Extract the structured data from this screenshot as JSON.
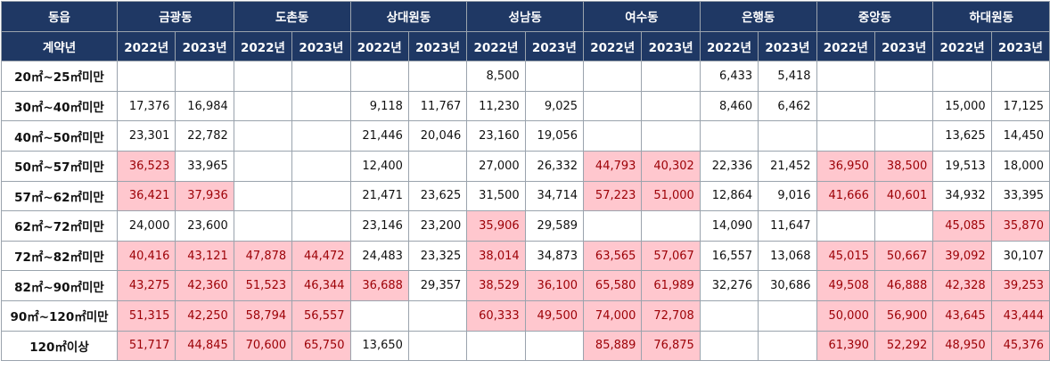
{
  "header": {
    "corner_label": "동읍",
    "districts": [
      "금광동",
      "도촌동",
      "상대원동",
      "성남동",
      "여수동",
      "은행동",
      "중앙동",
      "하대원동"
    ],
    "sub_corner_label": "계약년",
    "years": [
      "2022년",
      "2023년"
    ]
  },
  "highlight_color": "#ffc7ce",
  "highlight_text_color": "#9c0006",
  "header_color": "#1f3864",
  "rows": [
    {
      "label": "20㎡~25㎡미만",
      "cells": [
        {
          "v": "",
          "hl": false
        },
        {
          "v": "",
          "hl": false
        },
        {
          "v": "",
          "hl": false
        },
        {
          "v": "",
          "hl": false
        },
        {
          "v": "",
          "hl": false
        },
        {
          "v": "",
          "hl": false
        },
        {
          "v": "8,500",
          "hl": false
        },
        {
          "v": "",
          "hl": false
        },
        {
          "v": "",
          "hl": false
        },
        {
          "v": "",
          "hl": false
        },
        {
          "v": "6,433",
          "hl": false
        },
        {
          "v": "5,418",
          "hl": false
        },
        {
          "v": "",
          "hl": false
        },
        {
          "v": "",
          "hl": false
        },
        {
          "v": "",
          "hl": false
        },
        {
          "v": "",
          "hl": false
        }
      ]
    },
    {
      "label": "30㎡~40㎡미만",
      "cells": [
        {
          "v": "17,376",
          "hl": false
        },
        {
          "v": "16,984",
          "hl": false
        },
        {
          "v": "",
          "hl": false
        },
        {
          "v": "",
          "hl": false
        },
        {
          "v": "9,118",
          "hl": false
        },
        {
          "v": "11,767",
          "hl": false
        },
        {
          "v": "11,230",
          "hl": false
        },
        {
          "v": "9,025",
          "hl": false
        },
        {
          "v": "",
          "hl": false
        },
        {
          "v": "",
          "hl": false
        },
        {
          "v": "8,460",
          "hl": false
        },
        {
          "v": "6,462",
          "hl": false
        },
        {
          "v": "",
          "hl": false
        },
        {
          "v": "",
          "hl": false
        },
        {
          "v": "15,000",
          "hl": false
        },
        {
          "v": "17,125",
          "hl": false
        }
      ]
    },
    {
      "label": "40㎡~50㎡미만",
      "cells": [
        {
          "v": "23,301",
          "hl": false
        },
        {
          "v": "22,782",
          "hl": false
        },
        {
          "v": "",
          "hl": false
        },
        {
          "v": "",
          "hl": false
        },
        {
          "v": "21,446",
          "hl": false
        },
        {
          "v": "20,046",
          "hl": false
        },
        {
          "v": "23,160",
          "hl": false
        },
        {
          "v": "19,056",
          "hl": false
        },
        {
          "v": "",
          "hl": false
        },
        {
          "v": "",
          "hl": false
        },
        {
          "v": "",
          "hl": false
        },
        {
          "v": "",
          "hl": false
        },
        {
          "v": "",
          "hl": false
        },
        {
          "v": "",
          "hl": false
        },
        {
          "v": "13,625",
          "hl": false
        },
        {
          "v": "14,450",
          "hl": false
        }
      ]
    },
    {
      "label": "50㎡~57㎡미만",
      "cells": [
        {
          "v": "36,523",
          "hl": true
        },
        {
          "v": "33,965",
          "hl": false
        },
        {
          "v": "",
          "hl": false
        },
        {
          "v": "",
          "hl": false
        },
        {
          "v": "12,400",
          "hl": false
        },
        {
          "v": "",
          "hl": false
        },
        {
          "v": "27,000",
          "hl": false
        },
        {
          "v": "26,332",
          "hl": false
        },
        {
          "v": "44,793",
          "hl": true
        },
        {
          "v": "40,302",
          "hl": true
        },
        {
          "v": "22,336",
          "hl": false
        },
        {
          "v": "21,452",
          "hl": false
        },
        {
          "v": "36,950",
          "hl": true
        },
        {
          "v": "38,500",
          "hl": true
        },
        {
          "v": "19,513",
          "hl": false
        },
        {
          "v": "18,000",
          "hl": false
        }
      ]
    },
    {
      "label": "57㎡~62㎡미만",
      "cells": [
        {
          "v": "36,421",
          "hl": true
        },
        {
          "v": "37,936",
          "hl": true
        },
        {
          "v": "",
          "hl": false
        },
        {
          "v": "",
          "hl": false
        },
        {
          "v": "21,471",
          "hl": false
        },
        {
          "v": "23,625",
          "hl": false
        },
        {
          "v": "31,500",
          "hl": false
        },
        {
          "v": "34,714",
          "hl": false
        },
        {
          "v": "57,223",
          "hl": true
        },
        {
          "v": "51,000",
          "hl": true
        },
        {
          "v": "12,864",
          "hl": false
        },
        {
          "v": "9,016",
          "hl": false
        },
        {
          "v": "41,666",
          "hl": true
        },
        {
          "v": "40,601",
          "hl": true
        },
        {
          "v": "34,932",
          "hl": false
        },
        {
          "v": "33,395",
          "hl": false
        }
      ]
    },
    {
      "label": "62㎡~72㎡미만",
      "cells": [
        {
          "v": "24,000",
          "hl": false
        },
        {
          "v": "23,600",
          "hl": false
        },
        {
          "v": "",
          "hl": false
        },
        {
          "v": "",
          "hl": false
        },
        {
          "v": "23,146",
          "hl": false
        },
        {
          "v": "23,200",
          "hl": false
        },
        {
          "v": "35,906",
          "hl": true
        },
        {
          "v": "29,589",
          "hl": false
        },
        {
          "v": "",
          "hl": false
        },
        {
          "v": "",
          "hl": false
        },
        {
          "v": "14,090",
          "hl": false
        },
        {
          "v": "11,647",
          "hl": false
        },
        {
          "v": "",
          "hl": false
        },
        {
          "v": "",
          "hl": false
        },
        {
          "v": "45,085",
          "hl": true
        },
        {
          "v": "35,870",
          "hl": true
        }
      ]
    },
    {
      "label": "72㎡~82㎡미만",
      "cells": [
        {
          "v": "40,416",
          "hl": true
        },
        {
          "v": "43,121",
          "hl": true
        },
        {
          "v": "47,878",
          "hl": true
        },
        {
          "v": "44,472",
          "hl": true
        },
        {
          "v": "24,483",
          "hl": false
        },
        {
          "v": "23,325",
          "hl": false
        },
        {
          "v": "38,014",
          "hl": true
        },
        {
          "v": "34,873",
          "hl": false
        },
        {
          "v": "63,565",
          "hl": true
        },
        {
          "v": "57,067",
          "hl": true
        },
        {
          "v": "16,557",
          "hl": false
        },
        {
          "v": "13,068",
          "hl": false
        },
        {
          "v": "45,015",
          "hl": true
        },
        {
          "v": "50,667",
          "hl": true
        },
        {
          "v": "39,092",
          "hl": true
        },
        {
          "v": "30,107",
          "hl": false
        }
      ]
    },
    {
      "label": "82㎡~90㎡미만",
      "cells": [
        {
          "v": "43,275",
          "hl": true
        },
        {
          "v": "42,360",
          "hl": true
        },
        {
          "v": "51,523",
          "hl": true
        },
        {
          "v": "46,344",
          "hl": true
        },
        {
          "v": "36,688",
          "hl": true
        },
        {
          "v": "29,357",
          "hl": false
        },
        {
          "v": "38,529",
          "hl": true
        },
        {
          "v": "36,100",
          "hl": true
        },
        {
          "v": "65,580",
          "hl": true
        },
        {
          "v": "61,989",
          "hl": true
        },
        {
          "v": "32,276",
          "hl": false
        },
        {
          "v": "30,686",
          "hl": false
        },
        {
          "v": "49,508",
          "hl": true
        },
        {
          "v": "46,888",
          "hl": true
        },
        {
          "v": "42,328",
          "hl": true
        },
        {
          "v": "39,253",
          "hl": true
        }
      ]
    },
    {
      "label": "90㎡~120㎡미만",
      "cells": [
        {
          "v": "51,315",
          "hl": true
        },
        {
          "v": "42,250",
          "hl": true
        },
        {
          "v": "58,794",
          "hl": true
        },
        {
          "v": "56,557",
          "hl": true
        },
        {
          "v": "",
          "hl": false
        },
        {
          "v": "",
          "hl": false
        },
        {
          "v": "60,333",
          "hl": true
        },
        {
          "v": "49,500",
          "hl": true
        },
        {
          "v": "74,000",
          "hl": true
        },
        {
          "v": "72,708",
          "hl": true
        },
        {
          "v": "",
          "hl": false
        },
        {
          "v": "",
          "hl": false
        },
        {
          "v": "50,000",
          "hl": true
        },
        {
          "v": "56,900",
          "hl": true
        },
        {
          "v": "43,645",
          "hl": true
        },
        {
          "v": "43,444",
          "hl": true
        }
      ]
    },
    {
      "label": "120㎡이상",
      "cells": [
        {
          "v": "51,717",
          "hl": true
        },
        {
          "v": "44,845",
          "hl": true
        },
        {
          "v": "70,600",
          "hl": true
        },
        {
          "v": "65,750",
          "hl": true
        },
        {
          "v": "13,650",
          "hl": false
        },
        {
          "v": "",
          "hl": false
        },
        {
          "v": "",
          "hl": false
        },
        {
          "v": "",
          "hl": false
        },
        {
          "v": "85,889",
          "hl": true
        },
        {
          "v": "76,875",
          "hl": true
        },
        {
          "v": "",
          "hl": false
        },
        {
          "v": "",
          "hl": false
        },
        {
          "v": "61,390",
          "hl": true
        },
        {
          "v": "52,292",
          "hl": true
        },
        {
          "v": "48,950",
          "hl": true
        },
        {
          "v": "45,376",
          "hl": true
        }
      ]
    }
  ]
}
